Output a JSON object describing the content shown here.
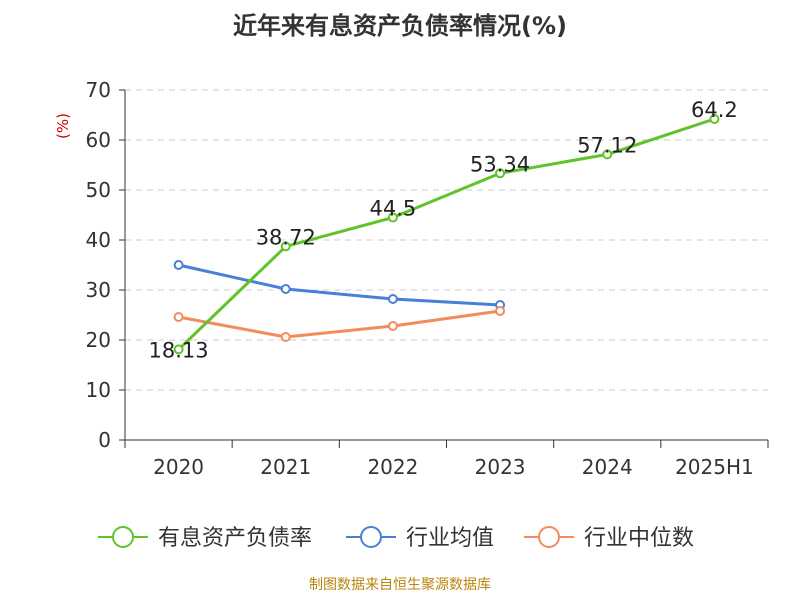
{
  "title": "近年来有息资产负债率情况(%)",
  "source": "制图数据来自恒生聚源数据库",
  "chart_data": {
    "type": "line",
    "title": "近年来有息资产负债率情况(%)",
    "ylabel": "(%)",
    "ylim": [
      0,
      70
    ],
    "yticks": [
      0,
      10,
      20,
      30,
      40,
      50,
      60,
      70
    ],
    "grid": true,
    "legend_position": "bottom",
    "categories": [
      "2020",
      "2021",
      "2022",
      "2023",
      "2024",
      "2025H1"
    ],
    "series": [
      {
        "name": "有息资产负债率",
        "color": "#5fc32a",
        "values": [
          18.13,
          38.72,
          44.5,
          53.34,
          57.12,
          64.2
        ],
        "labels": [
          "18.13",
          "38.72",
          "44.5",
          "53.34",
          "57.12",
          "64.2"
        ]
      },
      {
        "name": "行业均值",
        "color": "#4a7fd6",
        "values": [
          35.0,
          30.2,
          28.2,
          27.0,
          null,
          null
        ]
      },
      {
        "name": "行业中位数",
        "color": "#f28c5a",
        "values": [
          24.6,
          20.6,
          22.8,
          25.8,
          null,
          null
        ]
      }
    ]
  }
}
